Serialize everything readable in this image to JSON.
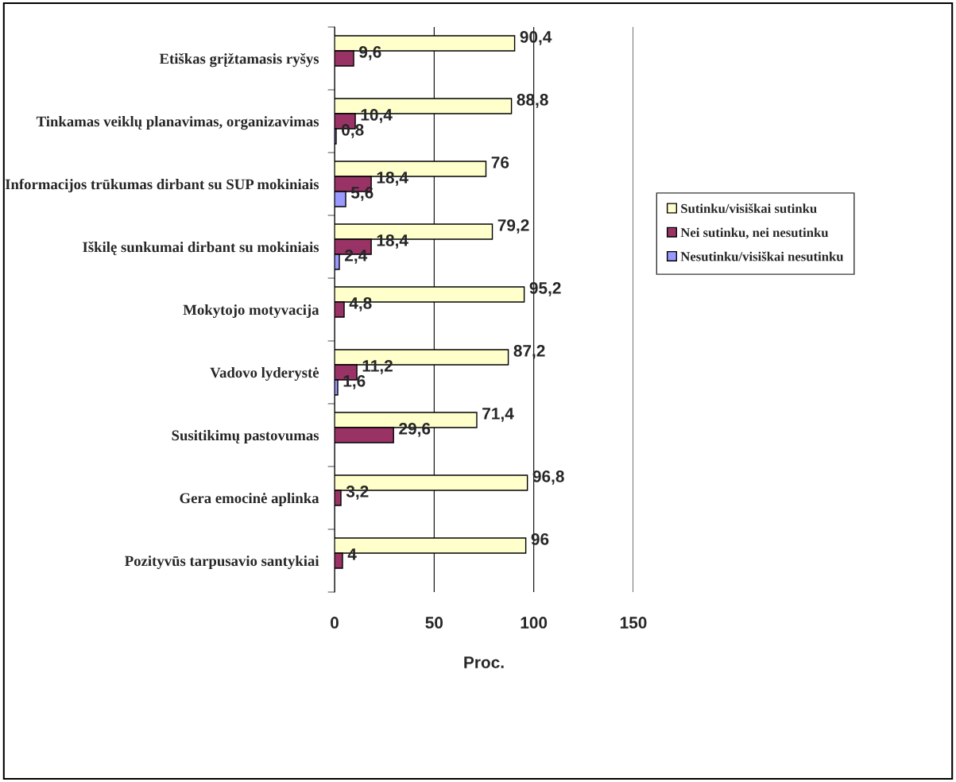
{
  "chart_data": {
    "type": "bar",
    "orientation": "horizontal",
    "xlabel": "Proc.",
    "categories": [
      "Etiškas grįžtamasis ryšys",
      "Tinkamas veiklų planavimas, organizavimas",
      "Informacijos trūkumas dirbant su SUP mokiniais",
      "Iškilę sunkumai dirbant su mokiniais",
      "Mokytojo motyvacija",
      "Vadovo lyderystė",
      "Susitikimų pastovumas",
      "Gera emocinė aplinka",
      "Pozityvūs tarpusavio santykiai"
    ],
    "series": [
      {
        "name": "Sutinku/visiškai sutinku",
        "color": "#ffffcc",
        "values": [
          90.4,
          88.8,
          76,
          79.2,
          95.2,
          87.2,
          71.4,
          96.8,
          96
        ],
        "value_labels": [
          "90,4",
          "88,8",
          "76",
          "79,2",
          "95,2",
          "87,2",
          "71,4",
          "96,8",
          "96"
        ]
      },
      {
        "name": "Nei sutinku, nei nesutinku",
        "color": "#993366",
        "values": [
          9.6,
          10.4,
          18.4,
          18.4,
          4.8,
          11.2,
          29.6,
          3.2,
          4
        ],
        "value_labels": [
          "9,6",
          "10,4",
          "18,4",
          "18,4",
          "4,8",
          "11,2",
          "29,6",
          "3,2",
          "4"
        ]
      },
      {
        "name": "Nesutinku/visiškai nesutinku",
        "color": "#9999ff",
        "values": [
          null,
          0.8,
          5.6,
          2.4,
          null,
          1.6,
          null,
          null,
          null
        ],
        "value_labels": [
          null,
          "0,8",
          "5,6",
          "2,4",
          null,
          "1,6",
          null,
          null,
          null
        ]
      }
    ],
    "xlim": [
      0,
      150
    ],
    "xticks": [
      0,
      50,
      100,
      150
    ],
    "grid": "x",
    "legend": "right"
  }
}
